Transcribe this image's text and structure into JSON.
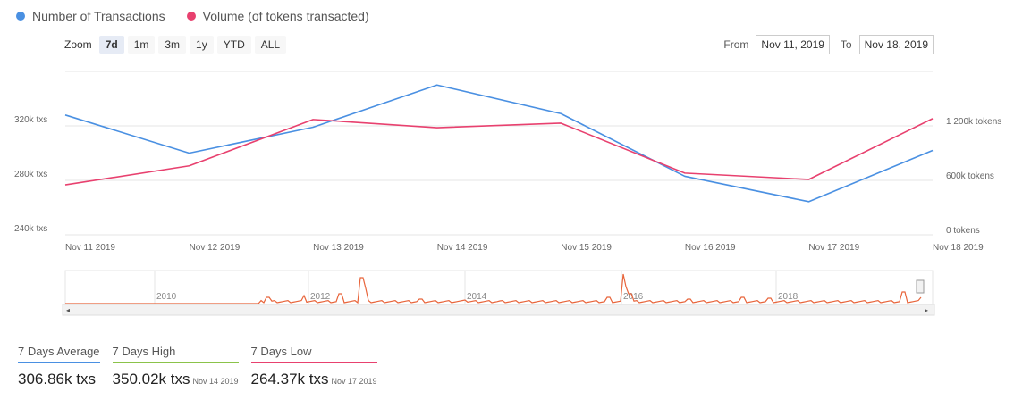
{
  "legend": {
    "items": [
      {
        "label": "Number of Transactions",
        "color": "#4a90e2"
      },
      {
        "label": "Volume (of tokens transacted)",
        "color": "#e8416f"
      }
    ]
  },
  "zoom": {
    "label": "Zoom",
    "buttons": [
      "7d",
      "1m",
      "3m",
      "1y",
      "YTD",
      "ALL"
    ],
    "active": "7d"
  },
  "range": {
    "from_label": "From",
    "from_value": "Nov 11, 2019",
    "to_label": "To",
    "to_value": "Nov 18, 2019"
  },
  "chart_data": {
    "type": "line",
    "categories": [
      "Nov 11 2019",
      "Nov 12 2019",
      "Nov 13 2019",
      "Nov 14 2019",
      "Nov 15 2019",
      "Nov 16 2019",
      "Nov 17 2019",
      "Nov 18 2019"
    ],
    "series": [
      {
        "name": "Number of Transactions",
        "axis": "left",
        "color": "#4a90e2",
        "values": [
          328000,
          300000,
          319000,
          350020,
          329000,
          283000,
          264370,
          302000
        ]
      },
      {
        "name": "Volume (of tokens transacted)",
        "axis": "right",
        "color": "#e8416f",
        "values": [
          550000,
          760000,
          1270000,
          1180000,
          1230000,
          680000,
          610000,
          1280000
        ]
      }
    ],
    "left_axis": {
      "ticks": [
        240000,
        280000,
        320000
      ],
      "tick_labels": [
        "240k txs",
        "280k txs",
        "320k txs"
      ],
      "range": [
        240000,
        360000
      ]
    },
    "right_axis": {
      "ticks": [
        0,
        600000,
        1200000
      ],
      "tick_labels": [
        "0 tokens",
        "600k tokens",
        "1 200k tokens"
      ],
      "range": [
        0,
        1800000
      ]
    },
    "navigator": {
      "year_labels": [
        "2010",
        "2012",
        "2014",
        "2016",
        "2018"
      ]
    }
  },
  "stats": [
    {
      "label": "7 Days Average",
      "value": "306.86k txs",
      "date": "",
      "color": "#4a90e2"
    },
    {
      "label": "7 Days High",
      "value": "350.02k txs",
      "date": "Nov 14 2019",
      "color": "#8bc34a"
    },
    {
      "label": "7 Days Low",
      "value": "264.37k txs",
      "date": "Nov 17 2019",
      "color": "#e8416f"
    }
  ]
}
